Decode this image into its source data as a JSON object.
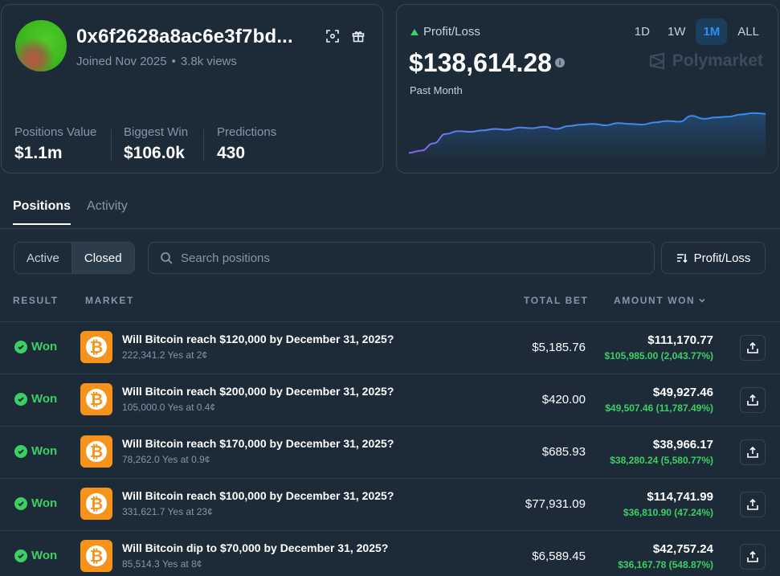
{
  "profile": {
    "address": "0x6f2628a8ac6e3f7bd...",
    "joined": "Joined Nov 2025",
    "views": "3.8k views",
    "stats": [
      {
        "label": "Positions Value",
        "value": "$1.1m"
      },
      {
        "label": "Biggest Win",
        "value": "$106.0k"
      },
      {
        "label": "Predictions",
        "value": "430"
      }
    ]
  },
  "pnl": {
    "title": "Profit/Loss",
    "value": "$138,614.28",
    "period": "Past Month",
    "brand": "Polymarket",
    "ranges": [
      "1D",
      "1W",
      "1M",
      "ALL"
    ],
    "active_range": "1M",
    "colors": {
      "up": "#3ccf64",
      "line_start": "#8e5ff0",
      "line_end": "#2e8ef0"
    },
    "trend": [
      0.02,
      0.05,
      0.15,
      0.28,
      0.32,
      0.31,
      0.33,
      0.35,
      0.34,
      0.37,
      0.36,
      0.38,
      0.35,
      0.39,
      0.41,
      0.42,
      0.4,
      0.43,
      0.42,
      0.41,
      0.44,
      0.46,
      0.45,
      0.53,
      0.49,
      0.51,
      0.52,
      0.55,
      0.57,
      0.56
    ]
  },
  "tabs": [
    {
      "label": "Positions",
      "active": true
    },
    {
      "label": "Activity",
      "active": false
    }
  ],
  "toolbar": {
    "filters": [
      "Active",
      "Closed"
    ],
    "active_filter": "Closed",
    "search_placeholder": "Search positions",
    "sort_label": "Profit/Loss"
  },
  "table": {
    "headers": {
      "result": "RESULT",
      "market": "MARKET",
      "total_bet": "TOTAL BET",
      "amount_won": "AMOUNT WON"
    },
    "rows": [
      {
        "result": "Won",
        "title": "Will Bitcoin reach $120,000 by December 31, 2025?",
        "sub": "222,341.2 Yes at 2¢",
        "bet": "$5,185.76",
        "amount": "$111,170.77",
        "gain": "$105,985.00 (2,043.77%)"
      },
      {
        "result": "Won",
        "title": "Will Bitcoin reach $200,000 by December 31, 2025?",
        "sub": "105,000.0 Yes at 0.4¢",
        "bet": "$420.00",
        "amount": "$49,927.46",
        "gain": "$49,507.46 (11,787.49%)"
      },
      {
        "result": "Won",
        "title": "Will Bitcoin reach $170,000 by December 31, 2025?",
        "sub": "78,262.0 Yes at 0.9¢",
        "bet": "$685.93",
        "amount": "$38,966.17",
        "gain": "$38,280.24 (5,580.77%)"
      },
      {
        "result": "Won",
        "title": "Will Bitcoin reach $100,000 by December 31, 2025?",
        "sub": "331,621.7 Yes at 23¢",
        "bet": "$77,931.09",
        "amount": "$114,741.99",
        "gain": "$36,810.90 (47.24%)"
      },
      {
        "result": "Won",
        "title": "Will Bitcoin dip to $70,000 by December 31, 2025?",
        "sub": "85,514.3 Yes at 8¢",
        "bet": "$6,589.45",
        "amount": "$42,757.24",
        "gain": "$36,167.78 (548.87%)"
      }
    ]
  }
}
